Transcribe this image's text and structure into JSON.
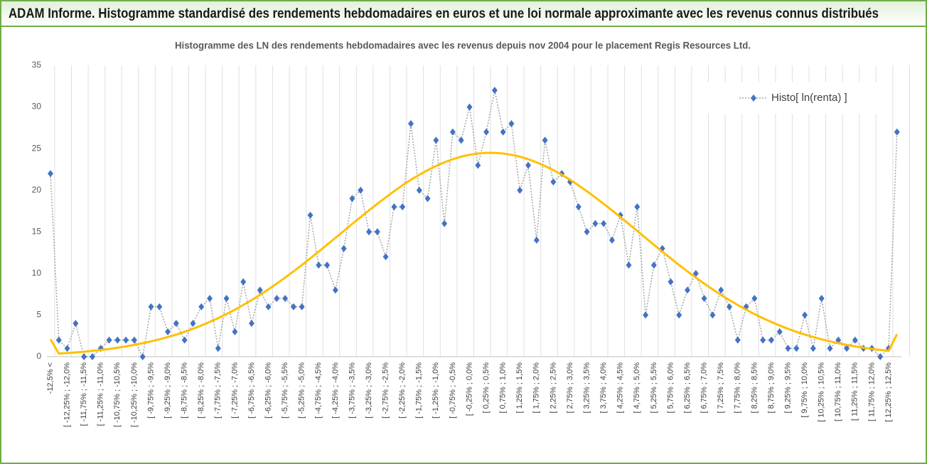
{
  "header": {
    "title": "ADAM Informe. Histogramme standardisé des rendements hebdomadaires en euros et une loi normale approximante avec les revenus connus distribués"
  },
  "chart_data": {
    "type": "line",
    "title": "Histogramme  des LN des rendements hebdomadaires avec les revenus depuis nov 2004 pour le placement Regis Resources Ltd.",
    "categories": [
      "-12,5% <",
      null,
      "[ -12,25% ; -12,0%",
      null,
      "[ -11,75% ; -11,5%",
      null,
      "[ -11,25% ; -11,0%",
      null,
      "[ -10,75% ; -10,5%",
      null,
      "[ -10,25% ; -10,0%",
      null,
      "[ -9,75% ; -9,5%",
      null,
      "[ -9,25% ; -9,0%",
      null,
      "[ -8,75% ; -8,5%",
      null,
      "[ -8,25% ; -8,0%",
      null,
      "[ -7,75% ; -7,5%",
      null,
      "[ -7,25% ; -7,0%",
      null,
      "[ -6,75% ; -6,5%",
      null,
      "[ -6,25% ; -6,0%",
      null,
      "[ -5,75% ; -5,5%",
      null,
      "[ -5,25% ; -5,0%",
      null,
      "[ -4,75% ; -4,5%",
      null,
      "[ -4,25% ; -4,0%",
      null,
      "[ -3,75% ; -3,5%",
      null,
      "[ -3,25% ; -3,0%",
      null,
      "[ -2,75% ; -2,5%",
      null,
      "[ -2,25% ; -2,0%",
      null,
      "[ -1,75% ; -1,5%",
      null,
      "[ -1,25% ; -1,0%",
      null,
      "[ -0,75% ; -0,5%",
      null,
      "[ -0,25% ; 0,0%",
      null,
      "[ 0,25% ; 0,5%",
      null,
      "[ 0,75% ; 1,0%",
      null,
      "[ 1,25% ; 1,5%",
      null,
      "[ 1,75% ; 2,0%",
      null,
      "[ 2,25% ; 2,5%",
      null,
      "[ 2,75% ; 3,0%",
      null,
      "[ 3,25% ; 3,5%",
      null,
      "[ 3,75% ; 4,0%",
      null,
      "[ 4,25% ; 4,5%",
      null,
      "[ 4,75% ; 5,0%",
      null,
      "[ 5,25% ; 5,5%",
      null,
      "[ 5,75% ; 6,0%",
      null,
      "[ 6,25% ; 6,5%",
      null,
      "[ 6,75% ; 7,0%",
      null,
      "[ 7,25% ; 7,5%",
      null,
      "[ 7,75% ; 8,0%",
      null,
      "[ 8,25% ; 8,5%",
      null,
      "[ 8,75% ; 9,0%",
      null,
      "[ 9,25% ; 9,5%",
      null,
      "[ 9,75% ; 10,0%",
      null,
      "[ 10,25% ; 10,5%",
      null,
      "[ 10,75% ; 11,0%",
      null,
      "[ 11,25% ; 11,5%",
      null,
      "[ 11,75% ; 12,0%",
      null,
      "[ 12,25% ; 12,5%",
      null
    ],
    "series": [
      {
        "name": "Histo[ ln(renta) ]",
        "color": "#4472c4",
        "line_color": "#a6a6a6",
        "marker": "diamond",
        "values": [
          22,
          2,
          1,
          4,
          0,
          0,
          1,
          2,
          2,
          2,
          2,
          0,
          6,
          6,
          3,
          4,
          2,
          4,
          6,
          7,
          1,
          7,
          3,
          9,
          4,
          8,
          6,
          7,
          7,
          6,
          6,
          17,
          11,
          11,
          8,
          13,
          19,
          20,
          15,
          15,
          12,
          18,
          18,
          28,
          20,
          19,
          26,
          16,
          27,
          26,
          30,
          23,
          27,
          32,
          27,
          28,
          20,
          23,
          14,
          26,
          21,
          22,
          21,
          18,
          15,
          16,
          16,
          14,
          17,
          11,
          18,
          5,
          11,
          13,
          9,
          5,
          8,
          10,
          7,
          5,
          8,
          6,
          2,
          6,
          7,
          2,
          2,
          3,
          1,
          1,
          5,
          1,
          7,
          1,
          2,
          1,
          2,
          1,
          1,
          0,
          1,
          27
        ]
      },
      {
        "color": "#ffc000",
        "values": [
          2.1,
          0.37,
          0.44,
          0.51,
          0.6,
          0.7,
          0.81,
          0.93,
          1.08,
          1.24,
          1.42,
          1.62,
          1.84,
          2.09,
          2.36,
          2.66,
          2.99,
          3.35,
          3.75,
          4.17,
          4.63,
          5.12,
          5.65,
          6.21,
          6.8,
          7.43,
          8.09,
          8.78,
          9.5,
          10.25,
          11.02,
          11.82,
          12.62,
          13.45,
          14.28,
          15.11,
          15.95,
          16.77,
          17.58,
          18.37,
          19.14,
          19.88,
          20.59,
          21.26,
          21.86,
          22.41,
          22.91,
          23.35,
          23.73,
          24.04,
          24.26,
          24.41,
          24.49,
          24.49,
          24.41,
          24.26,
          24.04,
          23.73,
          23.35,
          22.91,
          22.41,
          21.86,
          21.26,
          20.59,
          19.88,
          19.14,
          18.37,
          17.58,
          16.77,
          15.95,
          15.11,
          14.28,
          13.45,
          12.62,
          11.82,
          11.02,
          10.25,
          9.5,
          8.78,
          8.09,
          7.43,
          6.8,
          6.21,
          5.65,
          5.12,
          4.63,
          4.17,
          3.75,
          3.35,
          2.99,
          2.66,
          2.36,
          2.09,
          1.84,
          1.62,
          1.42,
          1.24,
          1.08,
          0.93,
          0.81,
          0.7,
          2.7
        ]
      }
    ],
    "ylim": [
      0,
      35
    ],
    "yticks": [
      0,
      5,
      10,
      15,
      20,
      25,
      30,
      35
    ],
    "grid": false,
    "legend": "upper right"
  }
}
